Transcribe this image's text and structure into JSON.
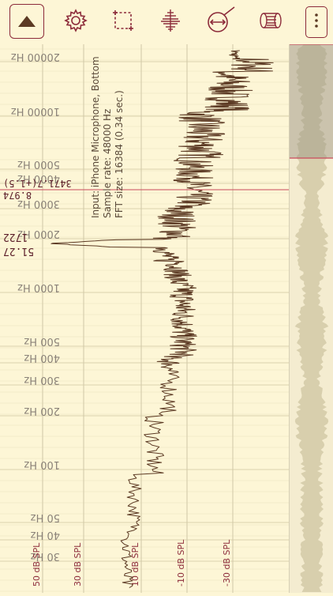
{
  "toolbar": {
    "play_icon": "triangle-up-icon",
    "settings_icon": "gear-icon",
    "crop_icon": "dashed-selection-icon",
    "waveform_icon": "waveform-icon",
    "zoom_icon": "zoom-arrows-icon",
    "record_icon": "tape-roll-icon",
    "menu_icon": "vertical-dots-icon"
  },
  "info": {
    "line1": "Input: iPhone Microphone, Bottom",
    "line2": "Sample rate: 48000 Hz",
    "line3": "FFT size: 16384 (0.34 sec.)"
  },
  "frequency_labels": [
    "20000 Hz",
    "10000 Hz",
    "5000 Hz",
    "4000 Hz",
    "3000 Hz",
    "2000 Hz",
    "1000 Hz",
    "500 Hz",
    "400 Hz",
    "300 Hz",
    "200 Hz",
    "100 Hz",
    "50 Hz",
    "40 Hz",
    "30 Hz"
  ],
  "db_labels": [
    "50 dB SPL",
    "30 dB SPL",
    "10 dB SPL",
    "-10 dB SPL",
    "-30 dB SPL"
  ],
  "markers": {
    "cursor_freq": "3471.7(+1.5)",
    "cursor_db": "8.974",
    "peak_freq": "1722",
    "peak_db": "51.27"
  },
  "colors": {
    "background": "#fdf6d6",
    "spectrum": "#5c3a24",
    "accent": "#8c2b3a",
    "grid": "#dcd3ae"
  }
}
